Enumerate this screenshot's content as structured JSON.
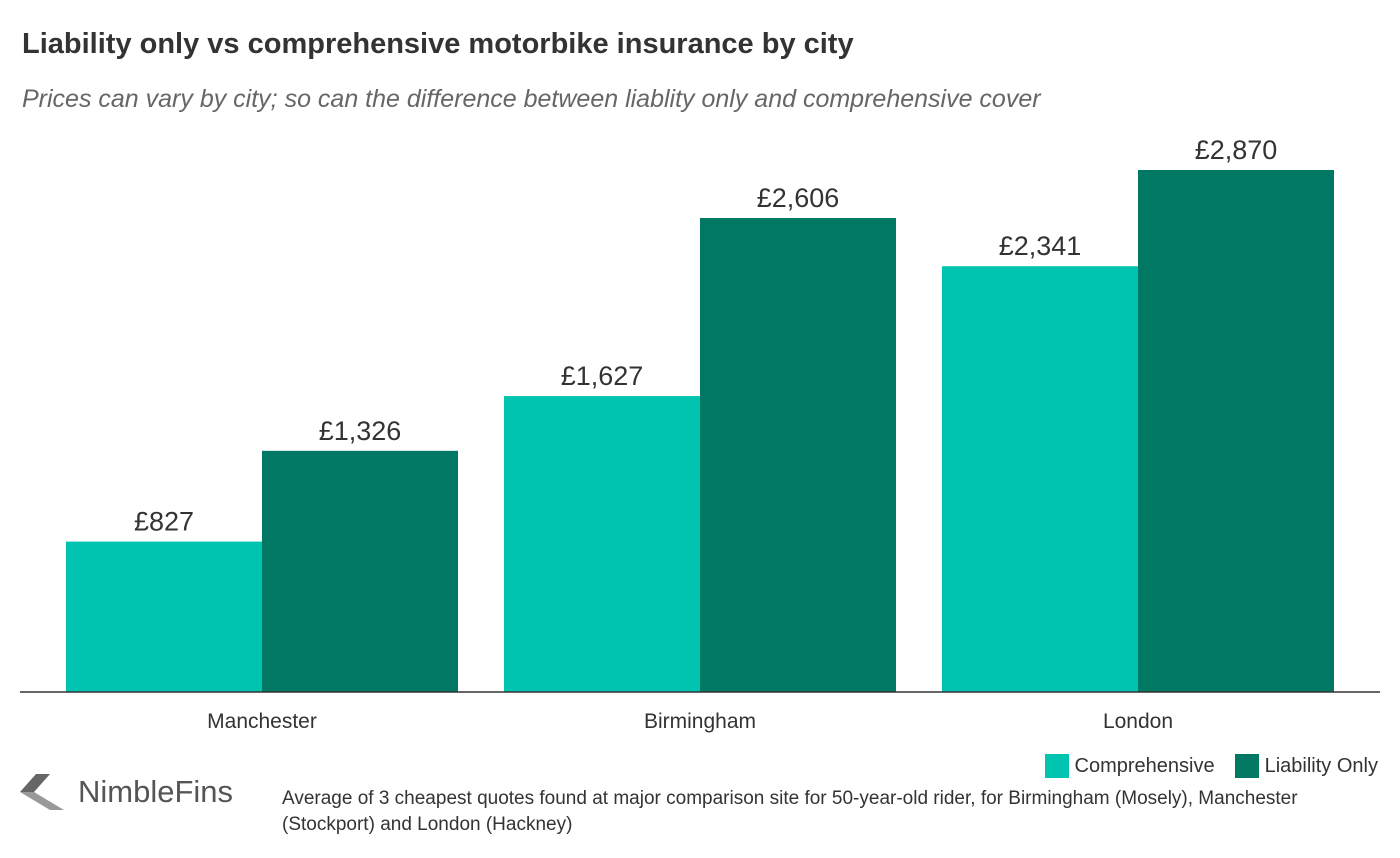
{
  "chart_data": {
    "type": "bar",
    "title": "Liability only vs comprehensive motorbike insurance by city",
    "subtitle": "Prices can vary by city; so can the difference between liablity only and comprehensive cover",
    "categories": [
      "Manchester",
      "Birmingham",
      "London"
    ],
    "series": [
      {
        "name": "Comprehensive",
        "color": "#00c4b0",
        "values": [
          827,
          1627,
          2341
        ],
        "labels": [
          "£827",
          "£1,627",
          "£2,341"
        ]
      },
      {
        "name": "Liability Only",
        "color": "#007864",
        "values": [
          1326,
          2606,
          2870
        ],
        "labels": [
          "£1,326",
          "£2,606",
          "£2,870"
        ]
      }
    ],
    "ylim": [
      0,
      2870
    ],
    "grid": false,
    "legend_position": "bottom-right"
  },
  "branding": {
    "logo_text": "NimbleFins",
    "logo_icon": "nimblefins-chevron-icon"
  },
  "footnote": "Average of 3 cheapest quotes found at major comparison site for 50-year-old rider, for Birmingham (Mosely), Manchester (Stockport) and London (Hackney)"
}
